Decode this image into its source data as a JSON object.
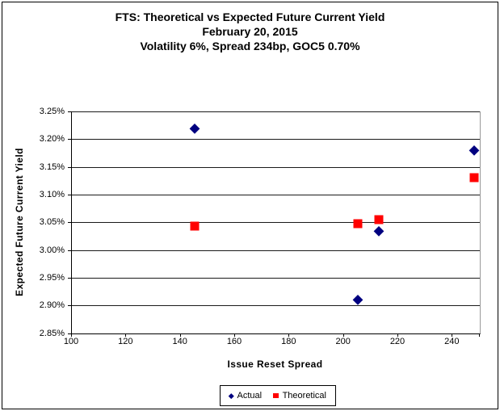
{
  "chart": {
    "title_lines": [
      "FTS: Theoretical vs Expected Future Current Yield",
      "February 20, 2015",
      "Volatility 6%, Spread 234bp, GOC5 0.70%"
    ],
    "x_axis": {
      "title": "Issue Reset Spread",
      "tick_labels": [
        "100",
        "120",
        "140",
        "160",
        "180",
        "200",
        "220",
        "240"
      ]
    },
    "y_axis": {
      "title": "Expected Future Current Yield",
      "tick_labels": [
        "3.25%",
        "3.20%",
        "3.15%",
        "3.10%",
        "3.05%",
        "3.00%",
        "2.95%",
        "2.90%",
        "2.85%"
      ]
    },
    "legend": [
      {
        "label": "Actual",
        "color": "#000080",
        "marker": "diamond"
      },
      {
        "label": "Theoretical",
        "color": "#FF0000",
        "marker": "square"
      }
    ]
  },
  "chart_data": {
    "type": "scatter",
    "title": "FTS: Theoretical vs Expected Future Current Yield",
    "subtitle_lines": [
      "February 20, 2015",
      "Volatility 6%, Spread 234bp, GOC5 0.70%"
    ],
    "xlabel": "Issue Reset Spread",
    "ylabel": "Expected Future Current Yield",
    "xlim": [
      100,
      250
    ],
    "ylim": [
      2.85,
      3.25
    ],
    "x_tick_step": 20,
    "y_tick_step": 0.05,
    "y_unit": "percent",
    "grid": "horizontal",
    "legend_position": "bottom",
    "series": [
      {
        "name": "Actual",
        "marker": "diamond",
        "color": "#000080",
        "points": [
          {
            "x": 145,
            "y": 3.22
          },
          {
            "x": 205,
            "y": 2.91
          },
          {
            "x": 213,
            "y": 3.035
          },
          {
            "x": 248,
            "y": 3.18
          }
        ]
      },
      {
        "name": "Theoretical",
        "marker": "square",
        "color": "#FF0000",
        "points": [
          {
            "x": 145,
            "y": 3.043
          },
          {
            "x": 205,
            "y": 3.048
          },
          {
            "x": 213,
            "y": 3.055
          },
          {
            "x": 248,
            "y": 3.13
          }
        ]
      }
    ]
  }
}
